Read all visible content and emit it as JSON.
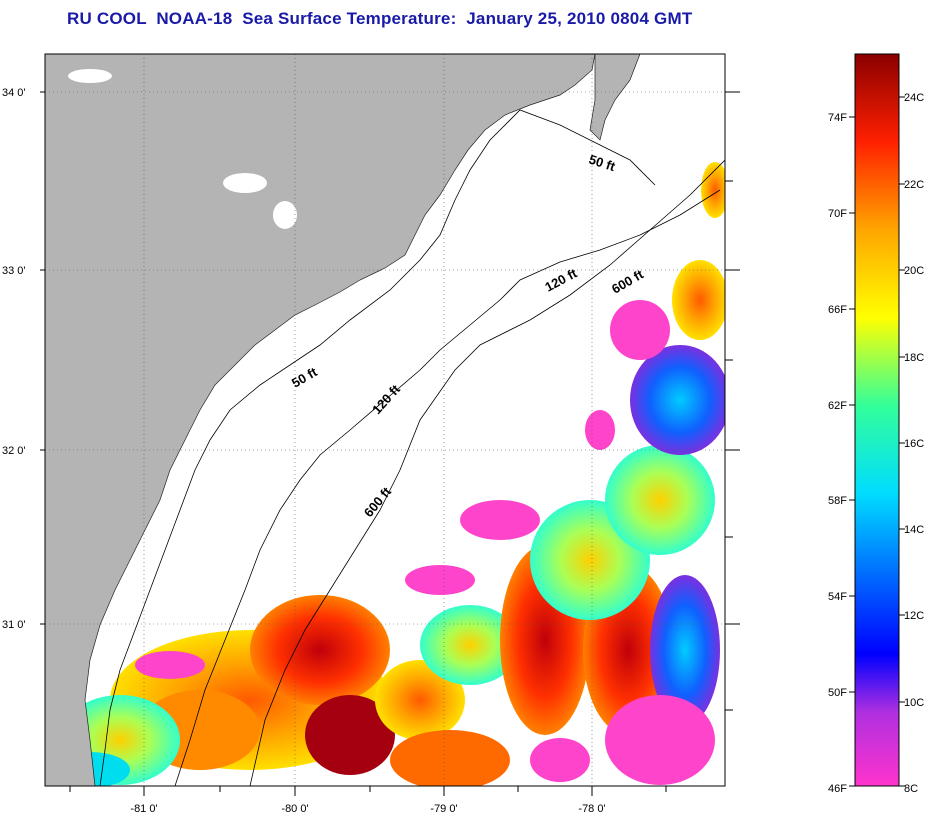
{
  "title": "RU COOL  NOAA-18  Sea Surface Temperature:  January 25, 2010 0804 GMT",
  "map": {
    "lat_labels": [
      "34 0'",
      "33 0'",
      "32 0'",
      "31 0'"
    ],
    "lon_labels": [
      "-81 0'",
      "-80 0'",
      "-79 0'",
      "-78 0'"
    ],
    "contour_labels": [
      "50 ft",
      "50 ft",
      "120 ft",
      "120 ft",
      "600 ft",
      "600 ft"
    ],
    "land_color": "#b4b4b4",
    "no_data_color": "#ffffff"
  },
  "colorbar": {
    "fahrenheit_labels": [
      "74F",
      "70F",
      "66F",
      "62F",
      "58F",
      "54F",
      "50F",
      "46F"
    ],
    "celsius_labels": [
      "24C",
      "22C",
      "20C",
      "18C",
      "16C",
      "14C",
      "12C",
      "10C",
      "8C"
    ],
    "range_c": [
      8,
      25
    ],
    "colors": [
      "#ff33cc",
      "#8a2be2",
      "#0000ff",
      "#0077ff",
      "#00ddff",
      "#33ff99",
      "#ffff00",
      "#ffa500",
      "#ff2000",
      "#8b0000"
    ]
  }
}
